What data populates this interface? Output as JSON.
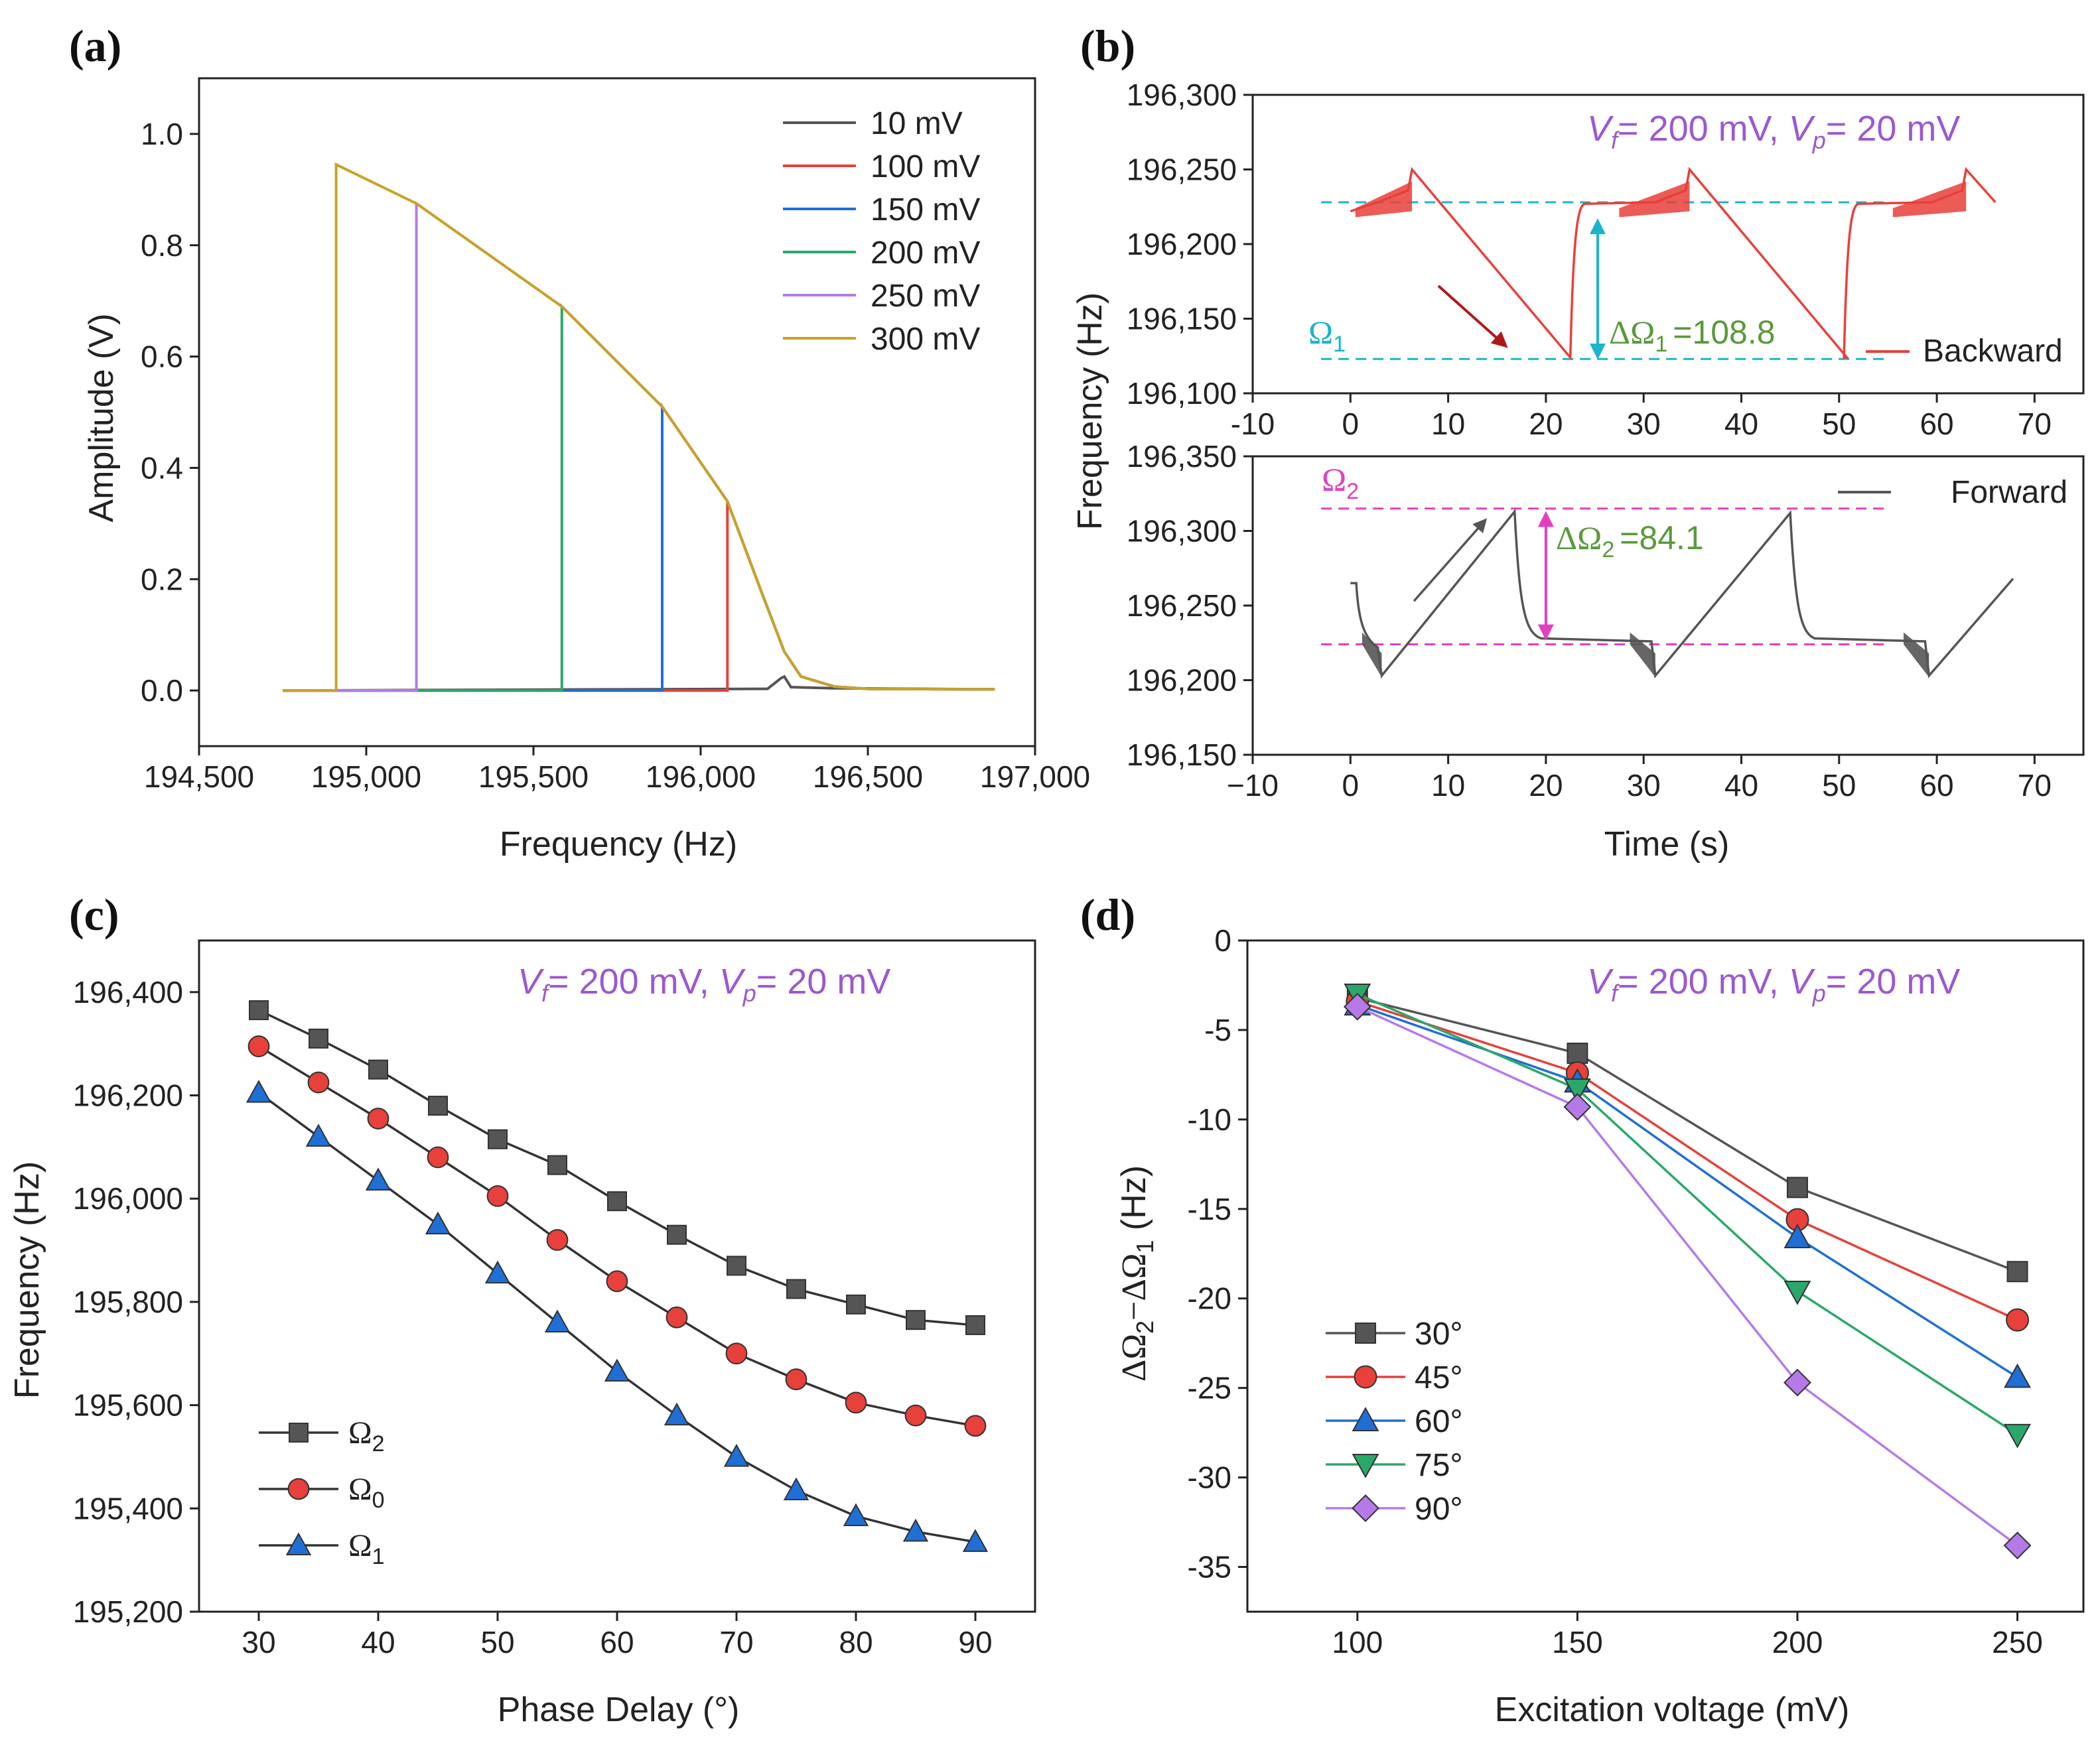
{
  "colors": {
    "gray": "#555555",
    "red": "#e8403a",
    "blue": "#1f6fd6",
    "green": "#2aa86a",
    "violet": "#b57ae8",
    "gold": "#c9a227",
    "cyan": "#19b5cc",
    "magenta": "#e43fc0",
    "purple": "#9b59d0",
    "olive": "#5a9a3c",
    "darkred": "#b01818"
  },
  "chart_data": [
    {
      "panel": "(a)",
      "type": "line",
      "xlabel": "Frequency (Hz)",
      "ylabel": "Amplitude (V)",
      "xlim": [
        194500,
        197000
      ],
      "ylim": [
        -0.1,
        1.1
      ],
      "xticks": [
        194500,
        195000,
        195500,
        196000,
        196500,
        197000
      ],
      "xtick_labels": [
        "194,500",
        "195,000",
        "195,500",
        "196,000",
        "196,500",
        "197,000"
      ],
      "yticks": [
        0.0,
        0.2,
        0.4,
        0.6,
        0.8,
        1.0
      ],
      "ytick_labels": [
        "0.0",
        "0.2",
        "0.4",
        "0.6",
        "0.8",
        "1.0"
      ],
      "legend_position": "top-right",
      "series": [
        {
          "name": "10 mV",
          "color": "#555555",
          "jump_x": 196250,
          "jump_y": 0.025,
          "jump_type": "peak"
        },
        {
          "name": "100 mV",
          "color": "#e8403a",
          "jump_x": 196080,
          "jump_y": 0.34
        },
        {
          "name": "150 mV",
          "color": "#1f6fd6",
          "jump_x": 195885,
          "jump_y": 0.51
        },
        {
          "name": "200 mV",
          "color": "#2aa86a",
          "jump_x": 195585,
          "jump_y": 0.69
        },
        {
          "name": "250 mV",
          "color": "#b57ae8",
          "jump_x": 195150,
          "jump_y": 0.875
        },
        {
          "name": "300 mV",
          "color": "#c9a227",
          "jump_x": 194910,
          "jump_y": 0.945
        }
      ],
      "backbone": {
        "x": [
          194910,
          195150,
          195585,
          195885,
          196080,
          196180,
          196250,
          196300,
          196400,
          196500,
          196880
        ],
        "y": [
          0.945,
          0.875,
          0.69,
          0.51,
          0.34,
          0.18,
          0.07,
          0.025,
          0.007,
          0.003,
          0.002
        ]
      },
      "x_start": 194750
    },
    {
      "panel": "(b)",
      "type": "line",
      "subplots": [
        {
          "name": "backward",
          "ylabel_shared": "Frequency (Hz)",
          "xlim": [
            -10,
            75
          ],
          "ylim": [
            196100,
            196300
          ],
          "xticks": [
            -10,
            0,
            10,
            20,
            30,
            40,
            50,
            60,
            70
          ],
          "xtick_labels": [
            "-10",
            "0",
            "10",
            "20",
            "30",
            "40",
            "50",
            "60",
            "70"
          ],
          "yticks": [
            196100,
            196150,
            196200,
            196250,
            196300
          ],
          "ytick_labels": [
            "196,100",
            "196,150",
            "196,200",
            "196,250",
            "196,300"
          ],
          "legend": "Backward",
          "legend_color": "#e8403a",
          "level_high": 196228,
          "level_low": 196123,
          "annotation_omega": "Ω",
          "annotation_omega_sub": "1",
          "annotation_delta": "ΔΩ",
          "annotation_delta_sub": "1",
          "annotation_value": "=108.8",
          "vf": "V",
          "vf_sub": "f",
          "vf_text": "= 200 mV, ",
          "vp": "V",
          "vp_sub": "p",
          "vp_text": "= 20 mV"
        },
        {
          "name": "forward",
          "xlabel": "Time (s)",
          "xlim": [
            -10,
            75
          ],
          "ylim": [
            196150,
            196350
          ],
          "xticks": [
            -10,
            0,
            10,
            20,
            30,
            40,
            50,
            60,
            70
          ],
          "xtick_labels": [
            "−10",
            "0",
            "10",
            "20",
            "30",
            "40",
            "50",
            "60",
            "70"
          ],
          "yticks": [
            196150,
            196200,
            196250,
            196300,
            196350
          ],
          "ytick_labels": [
            "196,150",
            "196,200",
            "196,250",
            "196,300",
            "196,350"
          ],
          "legend": "Forward",
          "legend_color": "#555555",
          "level_high": 196315,
          "level_low": 196224,
          "annotation_omega": "Ω",
          "annotation_omega_sub": "2",
          "annotation_delta": "ΔΩ",
          "annotation_delta_sub": "2",
          "annotation_value": "=84.1"
        }
      ]
    },
    {
      "panel": "(c)",
      "type": "line",
      "xlabel": "Phase Delay (°)",
      "ylabel": "Frequency (Hz)",
      "xlim": [
        25,
        95
      ],
      "ylim": [
        195200,
        196500
      ],
      "xticks": [
        30,
        40,
        50,
        60,
        70,
        80,
        90
      ],
      "xtick_labels": [
        "30",
        "40",
        "50",
        "60",
        "70",
        "80",
        "90"
      ],
      "yticks": [
        195200,
        195400,
        195600,
        195800,
        196000,
        196200,
        196400
      ],
      "ytick_labels": [
        "195,200",
        "195,400",
        "195,600",
        "195,800",
        "196,000",
        "196,200",
        "196,400"
      ],
      "x": [
        30,
        35,
        40,
        45,
        50,
        55,
        60,
        65,
        70,
        75,
        80,
        85,
        90
      ],
      "legend_position": "bottom-left",
      "vf": "V",
      "vf_sub": "f",
      "vf_text": "= 200 mV, ",
      "vp": "V",
      "vp_sub": "p",
      "vp_text": "= 20 mV",
      "series": [
        {
          "name": "Ω",
          "sub": "2",
          "marker": "square",
          "color": "#555555",
          "values": [
            196365,
            196310,
            196250,
            196180,
            196115,
            196065,
            195995,
            195930,
            195870,
            195825,
            195795,
            195765,
            195755
          ]
        },
        {
          "name": "Ω",
          "sub": "0",
          "marker": "circle",
          "color": "#e8403a",
          "values": [
            196295,
            196225,
            196155,
            196080,
            196005,
            195920,
            195840,
            195770,
            195700,
            195650,
            195605,
            195580,
            195560
          ]
        },
        {
          "name": "Ω",
          "sub": "1",
          "marker": "triangle-up",
          "color": "#1f6fd6",
          "values": [
            196205,
            196120,
            196035,
            195950,
            195855,
            195760,
            195665,
            195580,
            195500,
            195435,
            195385,
            195355,
            195335
          ]
        }
      ]
    },
    {
      "panel": "(d)",
      "type": "line",
      "xlabel": "Excitation voltage (mV)",
      "ylabel_main": "ΔΩ",
      "ylabel_sub1": "2",
      "ylabel_mid": "−ΔΩ",
      "ylabel_sub2": "1",
      "ylabel_end": " (Hz)",
      "xlim": [
        75,
        265
      ],
      "ylim": [
        -37.5,
        0
      ],
      "xticks": [
        100,
        150,
        200,
        250
      ],
      "xtick_labels": [
        "100",
        "150",
        "200",
        "250"
      ],
      "yticks": [
        0,
        -5,
        -10,
        -15,
        -20,
        -25,
        -30,
        -35
      ],
      "ytick_labels": [
        "0",
        "-5",
        "-10",
        "-15",
        "-20",
        "-25",
        "-30",
        "-35"
      ],
      "x": [
        100,
        150,
        200,
        250
      ],
      "legend_position": "bottom-left",
      "vf": "V",
      "vf_sub": "f",
      "vf_text": "= 200 mV, ",
      "vp": "V",
      "vp_sub": "p",
      "vp_text": "= 20 mV",
      "series": [
        {
          "name": "30°",
          "marker": "square",
          "color": "#555555",
          "values": [
            -3.2,
            -6.3,
            -13.8,
            -18.5
          ]
        },
        {
          "name": "45°",
          "marker": "circle",
          "color": "#e8403a",
          "values": [
            -3.4,
            -7.4,
            -15.6,
            -21.2
          ]
        },
        {
          "name": "60°",
          "marker": "triangle-up",
          "color": "#1f6fd6",
          "values": [
            -3.6,
            -7.9,
            -16.6,
            -24.4
          ]
        },
        {
          "name": "75°",
          "marker": "triangle-down",
          "color": "#2aa86a",
          "values": [
            -3.0,
            -8.3,
            -19.6,
            -27.6
          ]
        },
        {
          "name": "90°",
          "marker": "diamond",
          "color": "#b57ae8",
          "values": [
            -3.7,
            -9.3,
            -24.7,
            -33.8
          ]
        }
      ]
    }
  ]
}
